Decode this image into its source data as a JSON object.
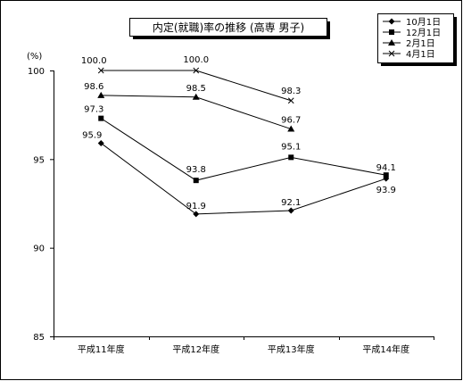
{
  "chart_data": {
    "type": "line",
    "title": "内定(就職)率の推移 (高専 男子)",
    "unit_label": "(%)",
    "categories": [
      "平成11年度",
      "平成12年度",
      "平成13年度",
      "平成14年度"
    ],
    "ylim": [
      85,
      100
    ],
    "yticks": [
      "85",
      "90",
      "95",
      "100"
    ],
    "grid": false,
    "legend_position": "top-right",
    "series": [
      {
        "name": "10月1日",
        "marker": "diamond",
        "values": [
          95.9,
          91.9,
          92.1,
          93.9
        ],
        "labels": [
          "95.9",
          "91.9",
          "92.1",
          "93.9"
        ]
      },
      {
        "name": "12月1日",
        "marker": "square",
        "values": [
          97.3,
          93.8,
          95.1,
          94.1
        ],
        "labels": [
          "97.3",
          "93.8",
          "95.1",
          "94.1"
        ]
      },
      {
        "name": "2月1日",
        "marker": "triangle",
        "values": [
          98.6,
          98.5,
          96.7,
          null
        ],
        "labels": [
          "98.6",
          "98.5",
          "96.7",
          null
        ]
      },
      {
        "name": "4月1日",
        "marker": "x",
        "values": [
          100.0,
          100.0,
          98.3,
          null
        ],
        "labels": [
          "100.0",
          "100.0",
          "98.3",
          null
        ]
      }
    ]
  }
}
